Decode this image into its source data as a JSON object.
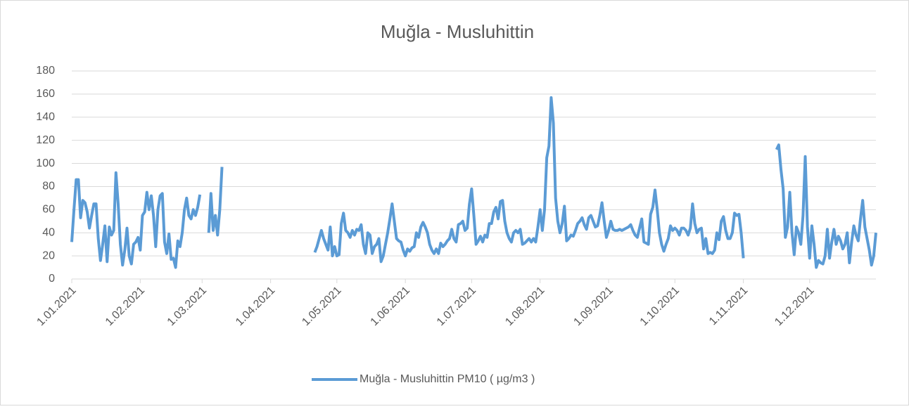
{
  "chart_data": {
    "type": "line",
    "title": "Muğla - Musluhittin",
    "x": [
      0,
      1,
      2,
      3,
      4,
      5,
      6,
      7,
      8,
      9,
      10,
      11,
      12,
      13,
      14,
      15,
      16,
      17,
      18,
      19,
      20,
      21,
      22,
      23,
      24,
      25,
      26,
      27,
      28,
      29,
      30,
      31,
      32,
      33,
      34,
      35,
      36,
      37,
      38,
      39,
      40,
      41,
      42,
      43,
      44,
      45,
      46,
      47,
      48,
      49,
      50,
      51,
      52,
      53,
      54,
      55,
      56,
      57,
      58,
      59,
      60,
      61,
      62,
      63,
      64,
      65,
      66,
      67,
      68,
      69,
      70,
      71,
      72,
      73,
      74,
      75,
      76,
      77,
      78,
      79,
      80,
      81,
      82,
      83,
      84,
      85,
      86,
      87,
      88,
      89,
      90,
      91,
      92,
      93,
      94,
      95,
      96,
      97,
      98,
      99,
      100,
      101,
      102,
      103,
      104,
      105,
      106,
      107,
      108,
      109,
      110,
      111,
      112,
      113,
      114,
      115,
      116,
      117,
      118,
      119,
      120,
      121,
      122,
      123,
      124,
      125,
      126,
      127,
      128,
      129,
      130,
      131,
      132,
      133,
      134,
      135,
      136,
      137,
      138,
      139,
      140,
      141,
      142,
      143,
      144,
      145,
      146,
      147,
      148,
      149,
      150,
      151,
      152,
      153,
      154,
      155,
      156,
      157,
      158,
      159,
      160,
      161,
      162,
      163,
      164,
      165,
      166,
      167,
      168,
      169,
      170,
      171,
      172,
      173,
      174,
      175,
      176,
      177,
      178,
      179,
      180,
      181,
      182,
      183,
      184,
      185,
      186,
      187,
      188,
      189,
      190,
      191,
      192,
      193,
      194,
      195,
      196,
      197,
      198,
      199,
      200,
      201,
      202,
      203,
      204,
      205,
      206,
      207,
      208,
      209,
      210,
      211,
      212,
      213,
      214,
      215,
      216,
      217,
      218,
      219,
      220,
      221,
      222,
      223,
      224,
      225,
      226,
      227,
      228,
      229,
      230,
      231,
      232,
      233,
      234,
      235,
      236,
      237,
      238,
      239,
      240,
      241,
      242,
      243,
      244,
      245,
      246,
      247,
      248,
      249,
      250,
      251,
      252,
      253,
      254,
      255,
      256,
      257,
      258,
      259,
      260,
      261,
      262,
      263,
      264,
      265,
      266,
      267,
      268,
      269,
      270,
      271,
      272,
      273,
      274,
      275,
      276,
      277,
      278,
      279,
      280,
      281,
      282,
      283,
      284,
      285,
      286,
      287,
      288,
      289,
      290,
      291,
      292,
      293,
      294,
      295,
      296,
      297,
      298,
      299,
      300,
      301,
      302,
      303,
      304,
      305,
      306,
      307,
      308,
      309,
      310,
      311,
      312,
      313,
      314,
      315,
      316,
      317,
      318,
      319,
      320,
      321,
      322,
      323,
      324,
      325,
      326,
      327,
      328,
      329,
      330,
      331,
      332,
      333,
      334,
      335,
      336,
      337,
      338,
      339,
      340,
      341,
      342,
      343,
      344,
      345,
      346,
      347,
      348,
      349,
      350,
      351,
      352,
      353,
      354,
      355,
      356,
      357,
      358,
      359,
      360,
      361,
      362,
      363,
      364
    ],
    "series": [
      {
        "name": "Muğla - Musluhittin PM10 ( µg/m3 )",
        "color": "#5b9bd5",
        "values": [
          32,
          60,
          86,
          86,
          53,
          68,
          66,
          58,
          44,
          55,
          65,
          65,
          35,
          16,
          30,
          46,
          15,
          45,
          38,
          42,
          92,
          65,
          30,
          12,
          25,
          44,
          20,
          13,
          30,
          32,
          36,
          25,
          55,
          58,
          75,
          60,
          72,
          55,
          28,
          60,
          72,
          74,
          32,
          22,
          39,
          17,
          18,
          10,
          33,
          28,
          40,
          60,
          70,
          55,
          52,
          60,
          55,
          62,
          73,
          null,
          null,
          null,
          40,
          74,
          42,
          55,
          38,
          60,
          97,
          null,
          null,
          null,
          null,
          null,
          null,
          null,
          null,
          null,
          null,
          null,
          null,
          null,
          null,
          null,
          null,
          null,
          null,
          null,
          null,
          null,
          null,
          null,
          null,
          null,
          null,
          null,
          null,
          null,
          null,
          null,
          null,
          null,
          null,
          null,
          null,
          null,
          null,
          null,
          null,
          null,
          23,
          28,
          35,
          42,
          35,
          30,
          25,
          45,
          20,
          28,
          20,
          21,
          48,
          57,
          42,
          40,
          36,
          42,
          38,
          43,
          42,
          47,
          30,
          22,
          40,
          38,
          22,
          28,
          30,
          35,
          15,
          20,
          30,
          40,
          52,
          65,
          50,
          35,
          33,
          32,
          25,
          20,
          26,
          24,
          27,
          28,
          40,
          36,
          45,
          49,
          45,
          40,
          30,
          25,
          22,
          26,
          22,
          31,
          28,
          30,
          33,
          35,
          43,
          35,
          32,
          47,
          48,
          50,
          42,
          44,
          65,
          78,
          55,
          30,
          33,
          37,
          32,
          38,
          36,
          48,
          48,
          58,
          62,
          52,
          67,
          68,
          50,
          40,
          35,
          32,
          40,
          42,
          40,
          43,
          30,
          31,
          33,
          35,
          32,
          35,
          32,
          45,
          60,
          42,
          60,
          105,
          115,
          157,
          135,
          70,
          50,
          40,
          48,
          63,
          33,
          35,
          38,
          37,
          42,
          48,
          50,
          53,
          47,
          43,
          53,
          55,
          50,
          45,
          46,
          55,
          66,
          50,
          36,
          42,
          50,
          43,
          42,
          42,
          43,
          42,
          43,
          44,
          45,
          47,
          42,
          38,
          36,
          44,
          52,
          32,
          31,
          30,
          56,
          62,
          77,
          60,
          40,
          30,
          24,
          30,
          35,
          46,
          42,
          44,
          42,
          38,
          44,
          44,
          42,
          38,
          44,
          65,
          48,
          40,
          43,
          44,
          26,
          35,
          22,
          23,
          22,
          25,
          40,
          34,
          50,
          54,
          42,
          35,
          35,
          40,
          57,
          55,
          56,
          40,
          18,
          null,
          null,
          null,
          null,
          null,
          null,
          null,
          null,
          null,
          null,
          null,
          null,
          null,
          null,
          112,
          116,
          95,
          78,
          36,
          45,
          75,
          40,
          21,
          45,
          40,
          30,
          55,
          106,
          45,
          18,
          46,
          30,
          10,
          16,
          14,
          13,
          20,
          43,
          18,
          32,
          43,
          30,
          37,
          33,
          26,
          30,
          40,
          14,
          32,
          46,
          38,
          33,
          52,
          68,
          45,
          35,
          25,
          12,
          20,
          40
        ]
      }
    ],
    "xlim": [
      0,
      364
    ],
    "xticks": [
      {
        "value": 0,
        "label": "1.01.2021"
      },
      {
        "value": 31,
        "label": "1.02.2021"
      },
      {
        "value": 59,
        "label": "1.03.2021"
      },
      {
        "value": 90,
        "label": "1.04.2021"
      },
      {
        "value": 120,
        "label": "1.05.2021"
      },
      {
        "value": 151,
        "label": "1.06.2021"
      },
      {
        "value": 181,
        "label": "1.07.2021"
      },
      {
        "value": 212,
        "label": "1.08.2021"
      },
      {
        "value": 243,
        "label": "1.09.2021"
      },
      {
        "value": 273,
        "label": "1.10.2021"
      },
      {
        "value": 304,
        "label": "1.11.2021"
      },
      {
        "value": 334,
        "label": "1.12.2021"
      }
    ],
    "ylim": [
      0,
      180
    ],
    "yticks": [
      0,
      20,
      40,
      60,
      80,
      100,
      120,
      140,
      160,
      180
    ],
    "grid": true,
    "legend": "bottom"
  }
}
